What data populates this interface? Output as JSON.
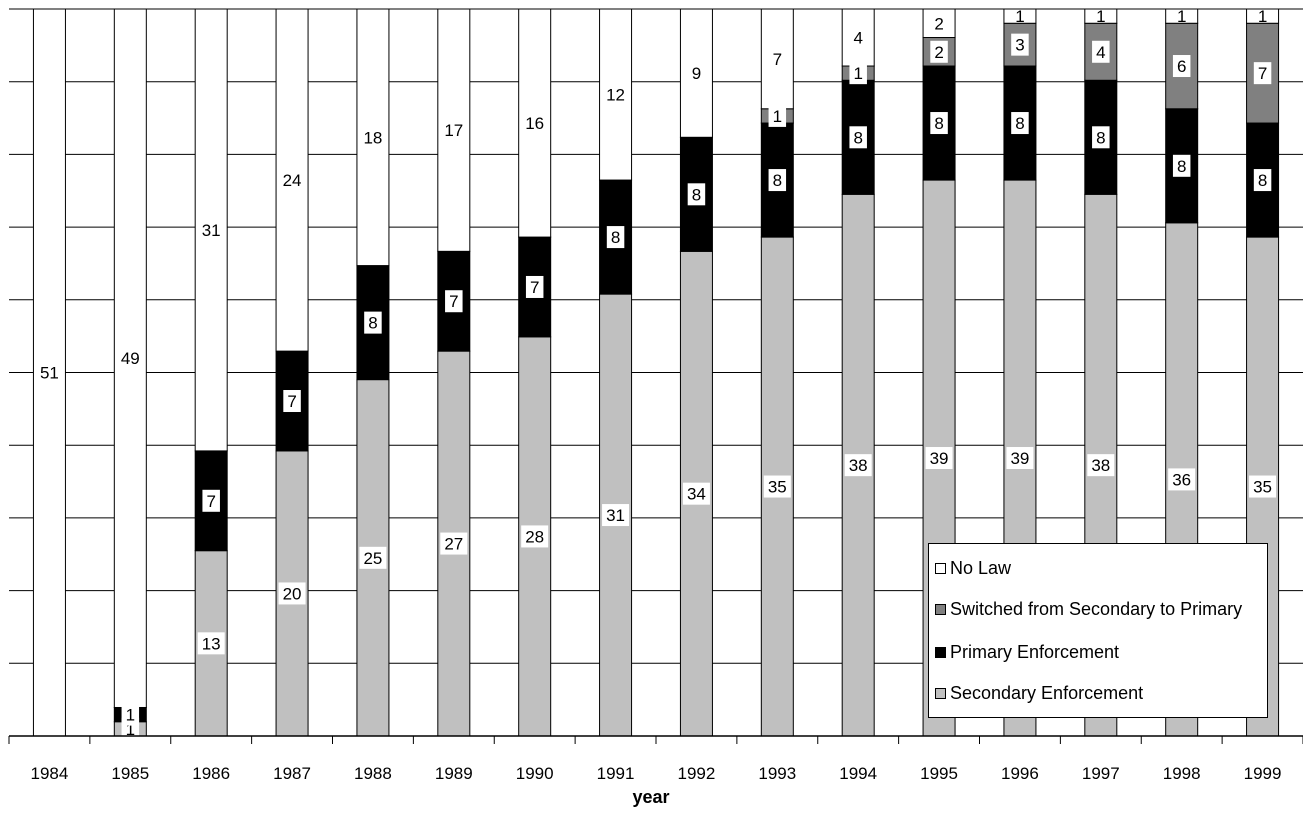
{
  "chart_data": {
    "type": "bar",
    "stacked": true,
    "xlabel": "year",
    "ylabel": "",
    "ylim": [
      0,
      51
    ],
    "grid": true,
    "legend_position": "bottom-right",
    "categories": [
      "1984",
      "1985",
      "1986",
      "1987",
      "1988",
      "1989",
      "1990",
      "1991",
      "1992",
      "1993",
      "1994",
      "1995",
      "1996",
      "1997",
      "1998",
      "1999"
    ],
    "series": [
      {
        "name": "Secondary Enforcement",
        "color": "#c0c0c0",
        "values": [
          0,
          1,
          13,
          20,
          25,
          27,
          28,
          31,
          34,
          35,
          38,
          39,
          39,
          38,
          36,
          35
        ]
      },
      {
        "name": "Primary Enforcement",
        "color": "#000000",
        "values": [
          0,
          1,
          7,
          7,
          8,
          7,
          7,
          8,
          8,
          8,
          8,
          8,
          8,
          8,
          8,
          8
        ]
      },
      {
        "name": "Switched from Secondary to Primary",
        "color": "#808080",
        "values": [
          0,
          0,
          0,
          0,
          0,
          0,
          0,
          0,
          0,
          1,
          1,
          2,
          3,
          4,
          6,
          7
        ]
      },
      {
        "name": "No Law",
        "color": "#ffffff",
        "values": [
          51,
          49,
          31,
          24,
          18,
          17,
          16,
          12,
          9,
          7,
          4,
          2,
          1,
          1,
          1,
          1
        ]
      }
    ]
  }
}
